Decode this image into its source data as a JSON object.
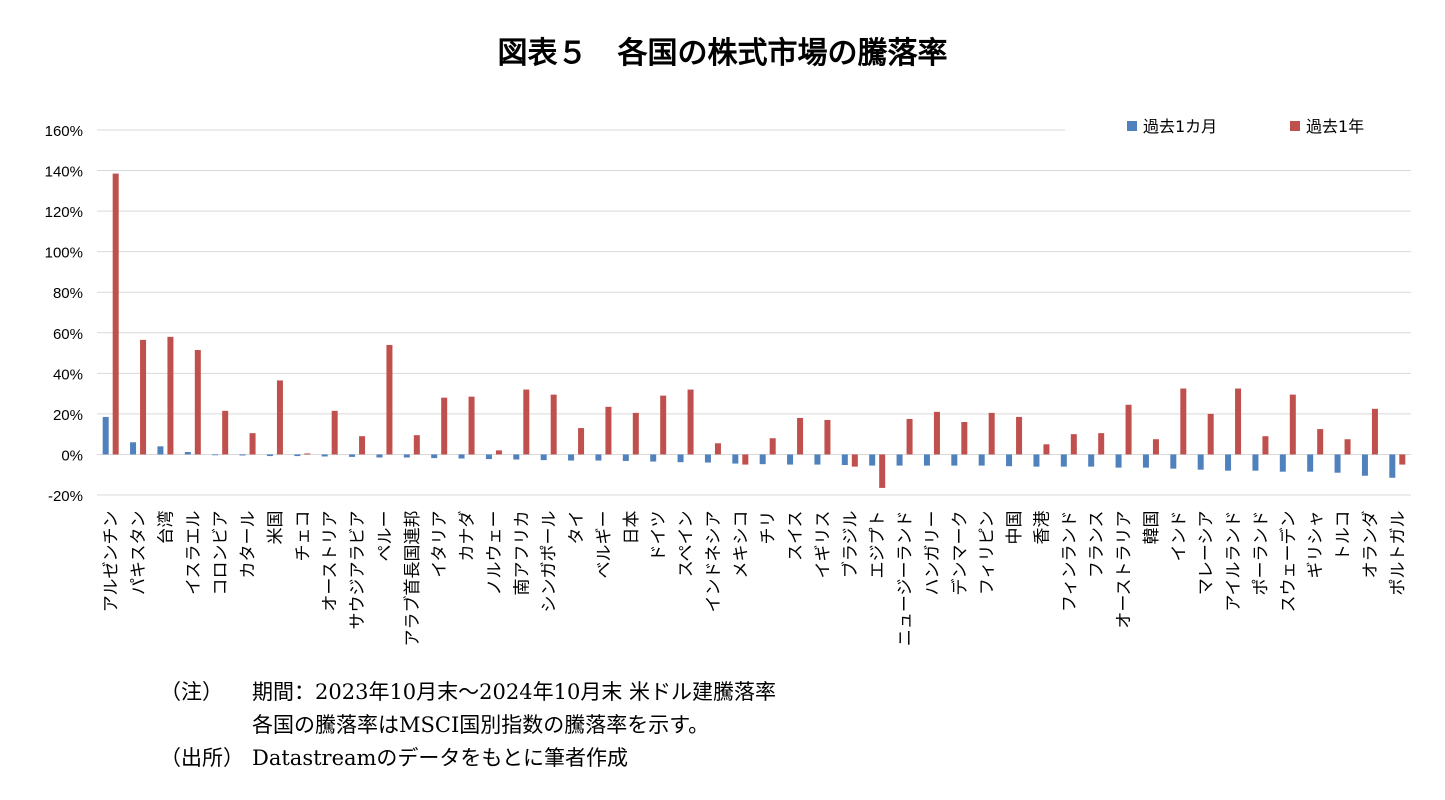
{
  "title": "図表５　各国の株式市場の騰落率",
  "notes": {
    "note_label": "（注）",
    "note_line1": "期間：2023年10月末～2024年10月末 米ドル建騰落率",
    "note_line2": "各国の騰落率はMSCI国別指数の騰落率を示す。",
    "source_label": "（出所）",
    "source_text": "Datastreamのデータをもとに筆者作成"
  },
  "chart_data": {
    "type": "bar",
    "ylim": [
      -20,
      160
    ],
    "yticks": [
      -20,
      0,
      20,
      40,
      60,
      80,
      100,
      120,
      140,
      160
    ],
    "ytick_labels": [
      "-20%",
      "0%",
      "20%",
      "40%",
      "60%",
      "80%",
      "100%",
      "120%",
      "140%",
      "160%"
    ],
    "grid": true,
    "legend_position": "top-right",
    "categories": [
      "アルゼンチン",
      "パキスタン",
      "台湾",
      "イスラエル",
      "コロンビア",
      "カタール",
      "米国",
      "チェコ",
      "オーストリア",
      "サウジアラビア",
      "ペルー",
      "アラブ首長国連邦",
      "イタリア",
      "カナダ",
      "ノルウェー",
      "南アフリカ",
      "シンガポール",
      "タイ",
      "ベルギー",
      "日本",
      "ドイツ",
      "スペイン",
      "インドネシア",
      "メキシコ",
      "チリ",
      "スイス",
      "イギリス",
      "ブラジル",
      "エジプト",
      "ニュージーランド",
      "ハンガリー",
      "デンマーク",
      "フィリピン",
      "中国",
      "香港",
      "フィンランド",
      "フランス",
      "オーストラリア",
      "韓国",
      "インド",
      "マレーシア",
      "アイルランド",
      "ポーランド",
      "スウェーデン",
      "ギリシャ",
      "トルコ",
      "オランダ",
      "ポルトガル"
    ],
    "series": [
      {
        "name": "過去1カ月",
        "color": "#4F81BD",
        "values": [
          18.5,
          6,
          4,
          1.2,
          -0.3,
          -0.5,
          -0.8,
          -0.8,
          -1,
          -1.2,
          -1.5,
          -1.5,
          -1.8,
          -2,
          -2.3,
          -2.5,
          -2.8,
          -3,
          -3,
          -3.2,
          -3.5,
          -3.8,
          -4,
          -4.5,
          -4.8,
          -5,
          -5,
          -5.2,
          -5.5,
          -5.5,
          -5.5,
          -5.5,
          -5.5,
          -5.8,
          -6,
          -6,
          -6,
          -6.5,
          -6.5,
          -7,
          -7.5,
          -8,
          -8,
          -8.5,
          -8.5,
          -9,
          -10.5,
          -11.5
        ]
      },
      {
        "name": "過去1年",
        "color": "#C0504D",
        "values": [
          138.5,
          56.5,
          58,
          51.5,
          21.5,
          10.5,
          36.5,
          0.5,
          21.5,
          9,
          54,
          9.5,
          28,
          28.5,
          2,
          32,
          29.5,
          13,
          23.5,
          20.5,
          29,
          32,
          5.5,
          -5,
          8,
          18,
          17,
          -6,
          -16.5,
          17.5,
          21,
          16,
          20.5,
          18.5,
          5,
          10,
          10.5,
          24.5,
          7.5,
          32.5,
          20,
          32.5,
          9,
          29.5,
          12.5,
          7.5,
          22.5,
          -5
        ]
      }
    ]
  }
}
